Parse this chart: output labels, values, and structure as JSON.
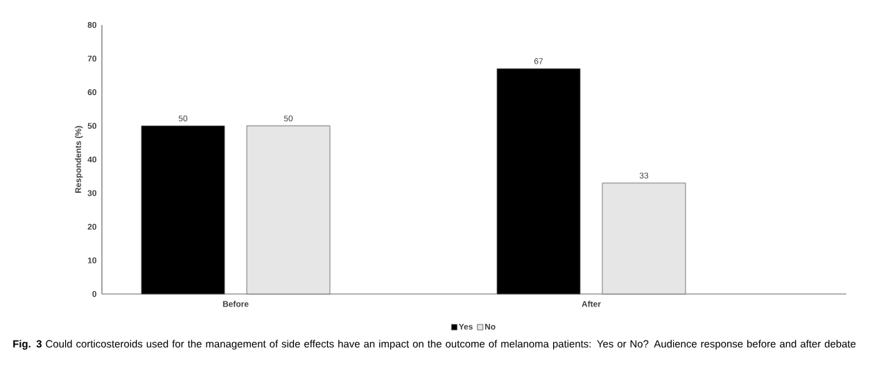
{
  "chart_data": {
    "type": "bar",
    "categories": [
      "Before",
      "After"
    ],
    "ylabel": "Respondents (%)",
    "ylim": [
      0,
      80
    ],
    "yticks": [
      0,
      10,
      20,
      30,
      40,
      50,
      60,
      70,
      80
    ],
    "series": [
      {
        "name": "Yes",
        "color": "#000000",
        "values": [
          50,
          67
        ]
      },
      {
        "name": "No",
        "color": "#e6e6e6",
        "values": [
          50,
          33
        ]
      }
    ],
    "data_labels": true,
    "legend": "bottom",
    "annotations": [
      "**Fig. 3** Could corticosteroids used for the management of side effects have an impact on the outcome of melanoma patients: Yes or No? Audience response before and after debate"
    ]
  }
}
